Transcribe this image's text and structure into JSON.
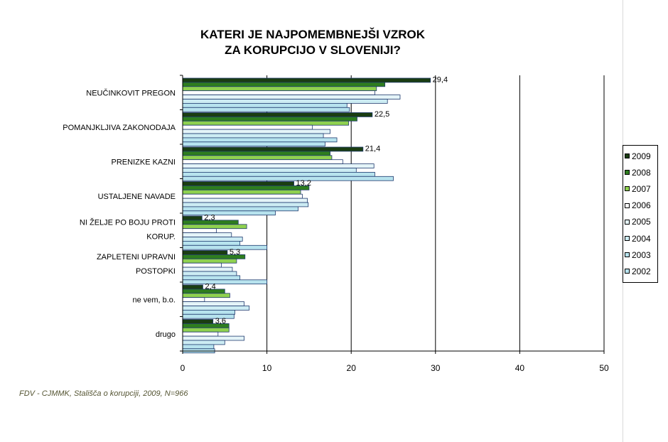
{
  "chart_data": {
    "type": "bar",
    "orientation": "horizontal",
    "title": [
      "KATERI JE NAJPOMEMBNEJŠI VZROK",
      "ZA KORUPCIJO V SLOVENIJI?"
    ],
    "categories": [
      [
        "NEUČINKOVIT PREGON"
      ],
      [
        "POMANJKLJIVA ZAKONODAJA"
      ],
      [
        "PRENIZKE KAZNI"
      ],
      [
        "USTALJENE NAVADE"
      ],
      [
        "NI ŽELJE PO BOJU PROTI",
        "KORUP."
      ],
      [
        "ZAPLETENI UPRAVNI",
        "POSTOPKI"
      ],
      [
        "ne vem, b.o."
      ],
      [
        "drugo"
      ]
    ],
    "xlim": [
      0,
      50
    ],
    "xticks": [
      0,
      10,
      20,
      30,
      40,
      50
    ],
    "grid": true,
    "legend_position": "right",
    "series": [
      {
        "name": "2009",
        "color": "#1a3d12",
        "values": [
          29.4,
          22.5,
          21.4,
          13.2,
          2.3,
          5.3,
          2.4,
          3.6
        ]
      },
      {
        "name": "2008",
        "color": "#2e7d1e",
        "values": [
          24,
          20.7,
          17.5,
          15,
          6.6,
          7.4,
          5,
          5.5
        ]
      },
      {
        "name": "2007",
        "color": "#8fd14f",
        "values": [
          23,
          19.7,
          17.7,
          14,
          7.6,
          6.4,
          5.6,
          5.5
        ]
      },
      {
        "name": "2006",
        "color": "#ffffff",
        "values": [
          22.8,
          15.4,
          19,
          14.2,
          4,
          4.6,
          2.6,
          4.2
        ]
      },
      {
        "name": "2005",
        "color": "#e4f4f8",
        "values": [
          25.8,
          17.5,
          22.7,
          14.8,
          5.8,
          5.9,
          7.3,
          7.3
        ]
      },
      {
        "name": "2004",
        "color": "#ccecf3",
        "values": [
          24.3,
          16.7,
          20.6,
          14.9,
          7.1,
          6.4,
          7.9,
          5
        ]
      },
      {
        "name": "2003",
        "color": "#b7e3ee",
        "values": [
          19.5,
          18.3,
          22.8,
          13.7,
          6.8,
          6.8,
          6.2,
          3.7
        ]
      },
      {
        "name": "2002",
        "color": "#b7e3ee",
        "values": [
          19.8,
          16.9,
          25,
          11,
          10,
          10,
          6.1,
          3.8
        ]
      }
    ],
    "data_labels": [
      "29,4",
      "22,5",
      "21,4",
      "13,2",
      "2,3",
      "5,3",
      "2,4",
      "3,6"
    ]
  },
  "source_note": "FDV - CJMMK, Stališča o korupciji, 2009, N=966"
}
